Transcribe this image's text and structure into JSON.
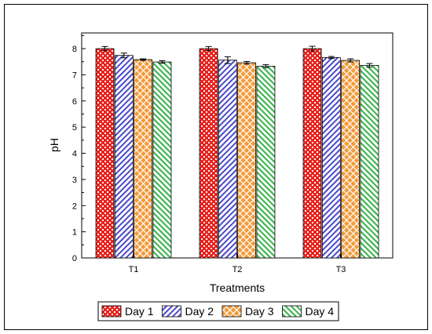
{
  "chart_data": {
    "type": "bar",
    "xlabel": "Treatments",
    "ylabel": "pH",
    "ylim": [
      0,
      8.6
    ],
    "yticks": [
      0,
      1,
      2,
      3,
      4,
      5,
      6,
      7,
      8
    ],
    "categories": [
      "T1",
      "T2",
      "T3"
    ],
    "legend_position": "bottom",
    "grid": false,
    "series": [
      {
        "name": "Day 1",
        "values": [
          8.0,
          8.0,
          8.0
        ],
        "errors": [
          0.08,
          0.08,
          0.09
        ],
        "color": "#e8231e",
        "pattern": "dots"
      },
      {
        "name": "Day 2",
        "values": [
          7.74,
          7.56,
          7.66
        ],
        "errors": [
          0.09,
          0.13,
          0.04
        ],
        "color": "#4a49c8",
        "pattern": "diagonal"
      },
      {
        "name": "Day 3",
        "values": [
          7.58,
          7.46,
          7.55
        ],
        "errors": [
          0.03,
          0.05,
          0.06
        ],
        "color": "#f29a3a",
        "pattern": "crosshatch"
      },
      {
        "name": "Day 4",
        "values": [
          7.49,
          7.33,
          7.36
        ],
        "errors": [
          0.05,
          0.06,
          0.07
        ],
        "color": "#33b246",
        "pattern": "backdiagonal"
      }
    ]
  }
}
